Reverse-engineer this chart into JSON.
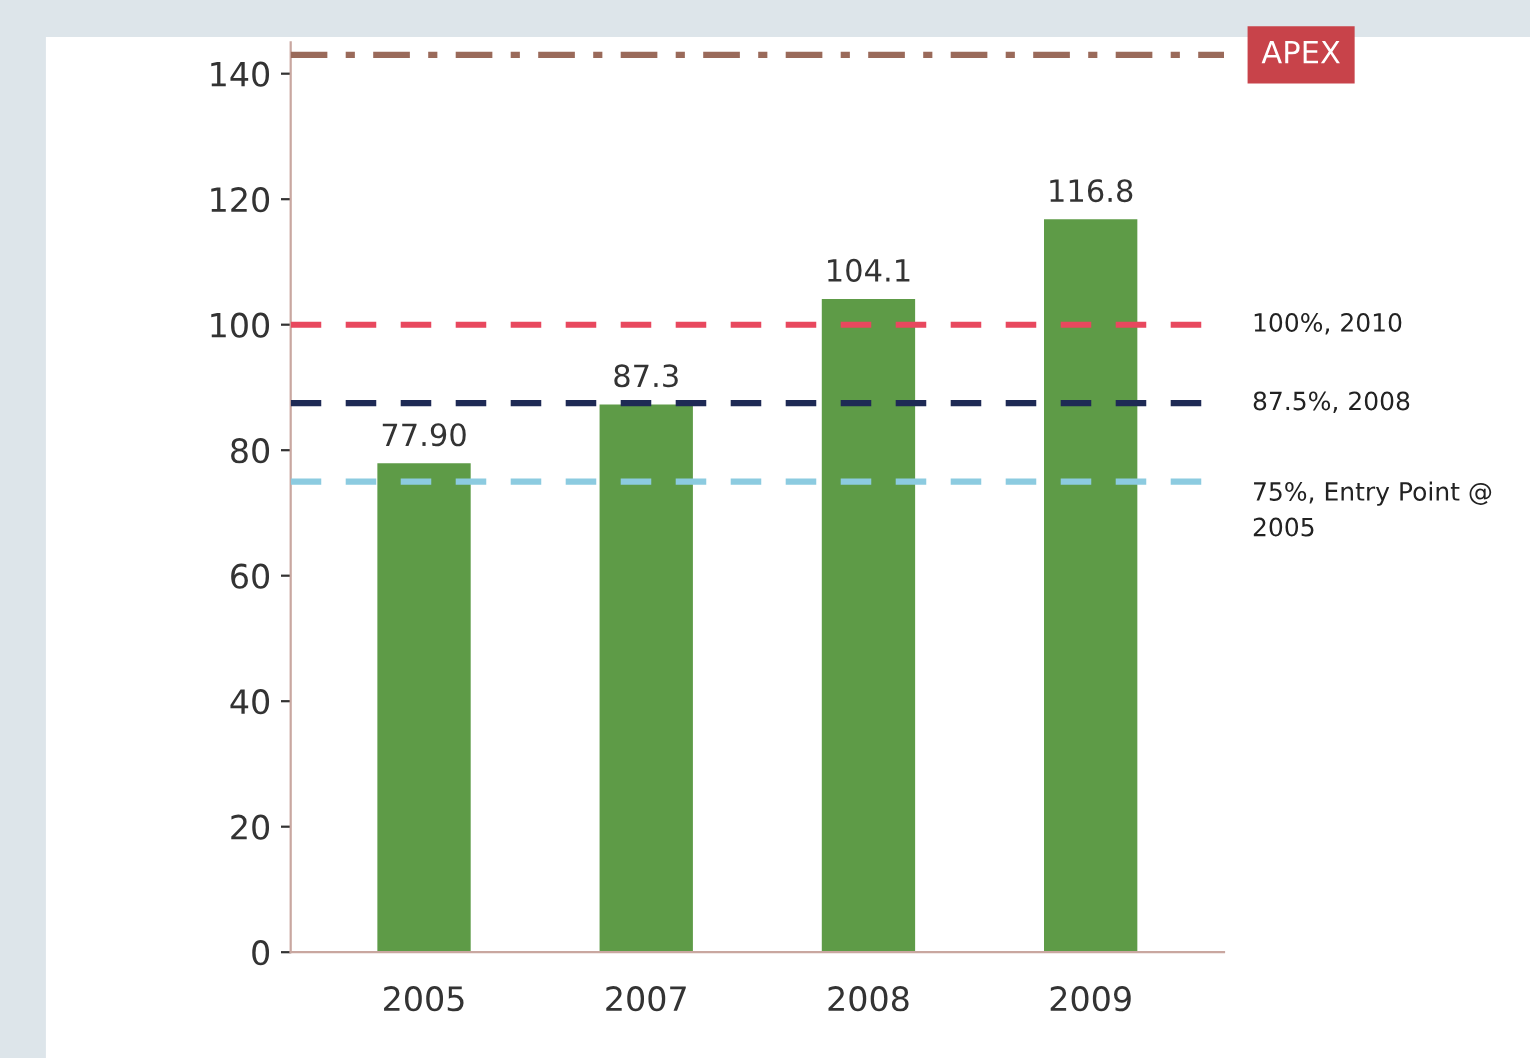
{
  "chart_data": {
    "type": "bar",
    "categories": [
      "2005",
      "2007",
      "2008",
      "2009"
    ],
    "values": [
      77.9,
      87.3,
      104.1,
      116.8
    ],
    "value_labels": [
      "77.90",
      "87.3",
      "104.1",
      "116.8"
    ],
    "color": "#5e9b47",
    "ylim": [
      0,
      145
    ],
    "yticks": [
      0,
      20,
      40,
      60,
      80,
      100,
      120,
      140
    ],
    "grid": false,
    "ref_lines": [
      {
        "axis": "y",
        "value": 143,
        "label": "APEX",
        "color": "#9a6a5a",
        "line_style": "dashdot"
      },
      {
        "axis": "y",
        "value": 100,
        "label": "100%, 2010",
        "color": "#e8485e",
        "line_style": "dashed"
      },
      {
        "axis": "y",
        "value": 87.5,
        "label": "87.5%, 2008",
        "color": "#1e2a55",
        "line_style": "dashed"
      },
      {
        "axis": "y",
        "value": 75,
        "label": "75%, Entry Point @\n2005",
        "color": "#8ccbe0",
        "line_style": "dashed"
      }
    ]
  }
}
